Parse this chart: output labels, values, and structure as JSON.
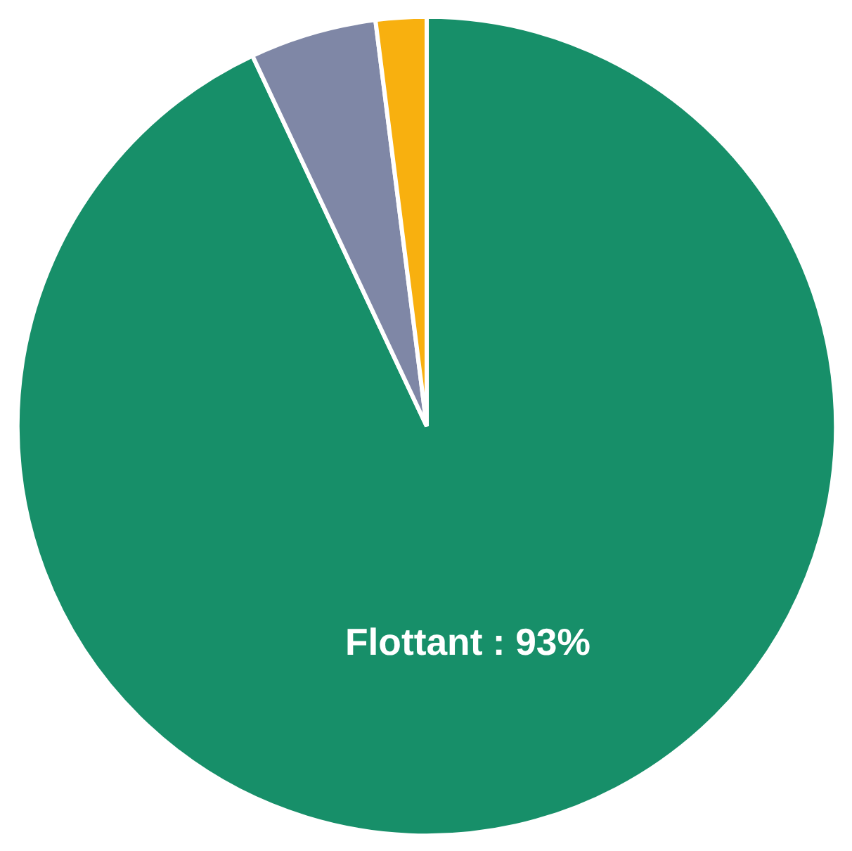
{
  "chart_data": {
    "type": "pie",
    "categories": [
      "Flottant",
      null,
      null
    ],
    "values": [
      93,
      5,
      2
    ],
    "colors": [
      "#178f69",
      "#7f87a6",
      "#f8b00f"
    ],
    "value_labels": [
      ": 93%",
      null,
      null
    ]
  }
}
